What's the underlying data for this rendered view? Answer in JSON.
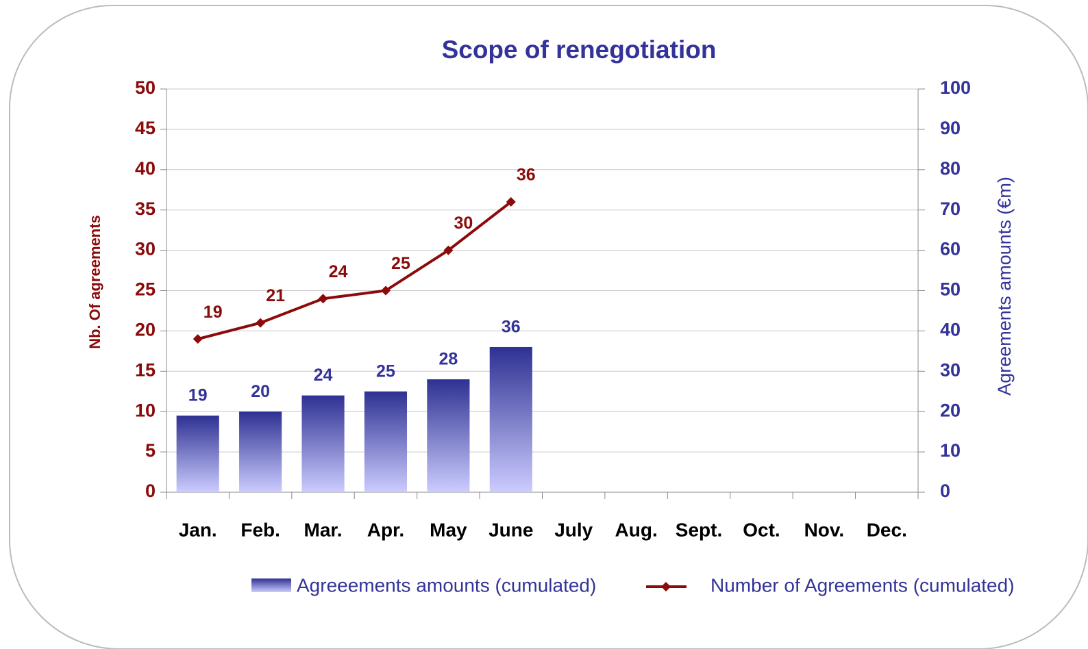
{
  "chart_data": {
    "type": "bar-line",
    "title": "Scope of renegotiation",
    "y_label": "Nb. Of agreements",
    "y2_label": "Agreements amounts (€m)",
    "categories": [
      "Jan.",
      "Feb.",
      "Mar.",
      "Apr.",
      "May",
      "June",
      "July",
      "Aug.",
      "Sept.",
      "Oct.",
      "Nov.",
      "Dec."
    ],
    "series": [
      {
        "name": "Agreeements amounts (cumulated)",
        "type": "bar",
        "axis": "y2",
        "color": "#2e3192",
        "values": [
          19,
          20,
          24,
          25,
          28,
          36,
          null,
          null,
          null,
          null,
          null,
          null
        ]
      },
      {
        "name": "Number of Agreements (cumulated)",
        "type": "line",
        "axis": "y",
        "color": "#8b0a0a",
        "values": [
          19,
          21,
          24,
          25,
          30,
          36,
          null,
          null,
          null,
          null,
          null,
          null
        ]
      }
    ],
    "ylim": [
      0,
      50
    ],
    "yticks": [
      0,
      5,
      10,
      15,
      20,
      25,
      30,
      35,
      40,
      45,
      50
    ],
    "y2lim": [
      0,
      100
    ],
    "y2ticks": [
      0,
      10,
      20,
      30,
      40,
      50,
      60,
      70,
      80,
      90,
      100
    ],
    "grid": true,
    "legend": "bottom"
  }
}
